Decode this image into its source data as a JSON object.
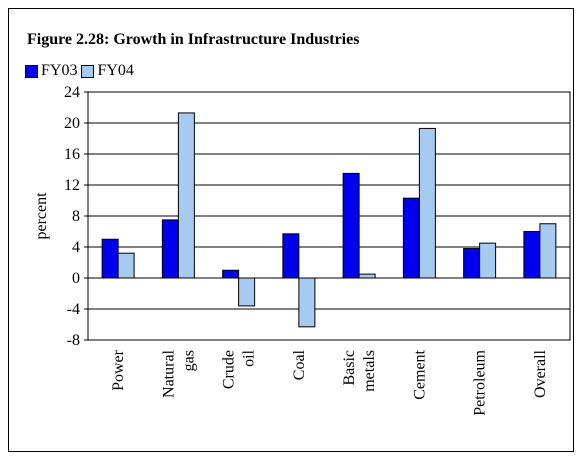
{
  "colors": {
    "FY03": "#0000ee",
    "FY04": "#a6caf0"
  },
  "chart_data": {
    "type": "bar",
    "title": "Figure 2.28: Growth in Infrastructure Industries",
    "xlabel": "",
    "ylabel": "percent",
    "ylim": [
      -8,
      24
    ],
    "yticks": [
      "-8",
      "-4",
      "0",
      "4",
      "8",
      "12",
      "16",
      "20",
      "24"
    ],
    "grid": "horizontal",
    "legend_position": "top-left",
    "categories": [
      "Power",
      "Natural gas",
      "Crude oil",
      "Coal",
      "Basic metals",
      "Cement",
      "Petroleum",
      "Overall"
    ],
    "series": [
      {
        "name": "FY03",
        "values": [
          5.0,
          7.5,
          1.0,
          5.7,
          13.5,
          10.3,
          3.8,
          6.0
        ]
      },
      {
        "name": "FY04",
        "values": [
          3.2,
          21.3,
          -3.6,
          -6.3,
          0.5,
          19.3,
          4.5,
          7.0
        ]
      }
    ]
  }
}
